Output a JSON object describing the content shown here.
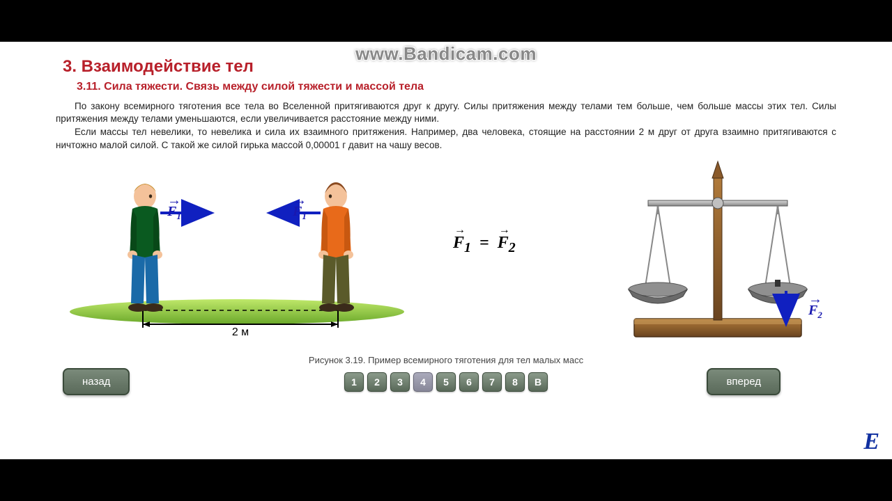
{
  "watermark": "www.Bandicam.com",
  "chapter": "3. Взаимодействие тел",
  "section": "3.11. Сила тяжести. Связь между силой тяжести и массой тела",
  "paragraphs": [
    "По закону всемирного тяготения все тела во Вселенной притягиваются друг к другу. Силы притяжения между телами тем больше, чем больше массы этих тел. Силы притяжения между телами уменьшаются, если увеличивается расстояние между ними.",
    "Если массы тел невелики, то невелика и сила их взаимного притяжения. Например, два человека, стоящие на расстоянии 2 м друг от друга взаимно притягиваются с ничтожно малой силой. С такой же силой гирька массой 0,00001 г давит на чашу весов."
  ],
  "figure": {
    "caption": "Рисунок 3.19. Пример всемирного тяготения для тел малых масс",
    "distance_label": "2 м",
    "force_labels": {
      "f1": "F",
      "f1_sub": "1",
      "f2": "F",
      "f2_sub": "2"
    },
    "equation_lhs": "F",
    "equation_lhs_sub": "1",
    "equation_rhs": "F",
    "equation_rhs_sub": "2",
    "colors": {
      "arrow": "#1020c0",
      "ground_light": "#9fd84a",
      "ground_dark": "#5a9020",
      "person1_top": "#0a5a20",
      "person1_pants": "#1a6aa8",
      "person2_top": "#e86a1a",
      "person2_pants": "#5a5a2a",
      "skin": "#f4c29a",
      "hair1": "#c49030",
      "hair2": "#8a4a20",
      "scale_wood": "#8a5a2a",
      "scale_wood_dark": "#5a3a1a",
      "scale_metal": "#b8b8b8",
      "scale_metal_dark": "#707070",
      "scale_pan": "#808080"
    }
  },
  "nav": {
    "back": "назад",
    "forward": "вперед",
    "pages": [
      "1",
      "2",
      "3",
      "4",
      "5",
      "6",
      "7",
      "8",
      "В"
    ],
    "active_index": 3
  },
  "logo": "E"
}
